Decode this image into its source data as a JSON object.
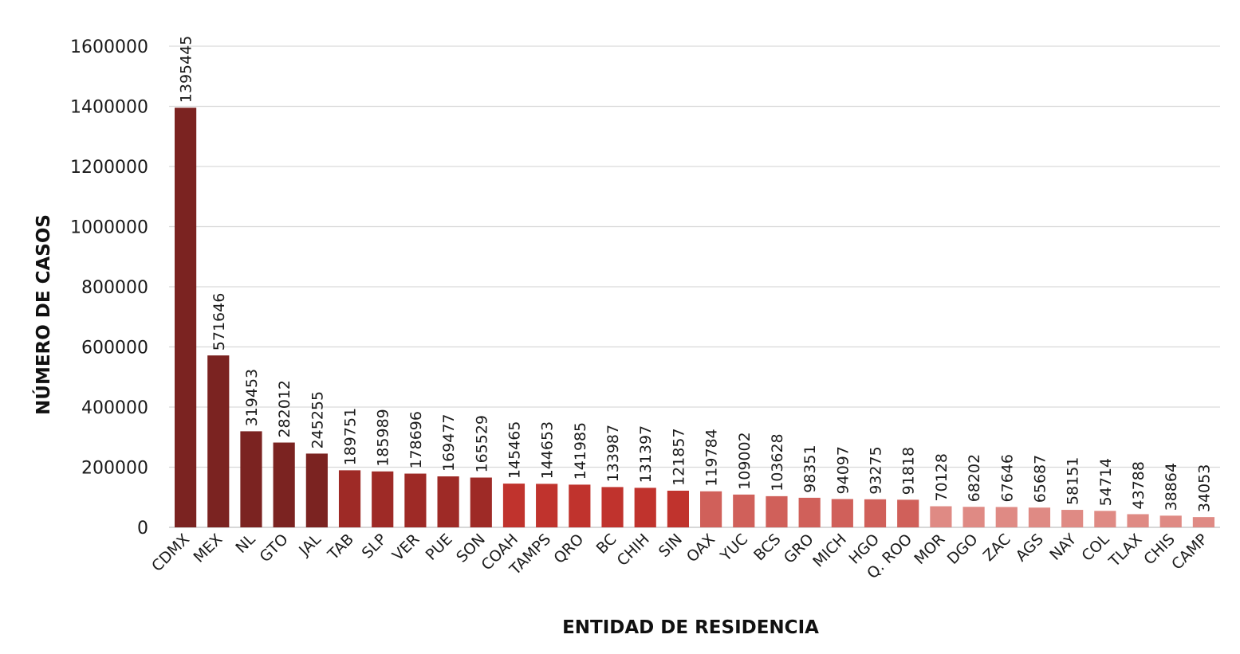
{
  "chart_data": {
    "type": "bar",
    "title": "",
    "xlabel": "ENTIDAD DE RESIDENCIA",
    "ylabel": "NÚMERO DE CASOS",
    "ylim": [
      0,
      1600000
    ],
    "yticks": [
      "0",
      "200000",
      "400000",
      "600000",
      "800000",
      "1000000",
      "1200000",
      "1400000",
      "1600000"
    ],
    "grid": true,
    "legend": "none",
    "categories": [
      "CDMX",
      "MEX",
      "NL",
      "GTO",
      "JAL",
      "TAB",
      "SLP",
      "VER",
      "PUE",
      "SON",
      "COAH",
      "TAMPS",
      "QRO",
      "BC",
      "CHIH",
      "SIN",
      "OAX",
      "YUC",
      "BCS",
      "GRO",
      "MICH",
      "HGO",
      "Q. ROO",
      "MOR",
      "DGO",
      "ZAC",
      "AGS",
      "NAY",
      "COL",
      "TLAX",
      "CHIS",
      "CAMP"
    ],
    "values": [
      1395445,
      571646,
      319453,
      282012,
      245255,
      189751,
      185989,
      178696,
      169477,
      165529,
      145465,
      144653,
      141985,
      133987,
      131397,
      121857,
      119784,
      109002,
      103628,
      98351,
      94097,
      93275,
      91818,
      70128,
      68202,
      67646,
      65687,
      58151,
      54714,
      43788,
      38864,
      34053
    ],
    "colors": {
      "gridline": "#d9d9d9",
      "axis": "#bfbfbf",
      "tier1": "#7b2321",
      "tier2": "#9e2a26",
      "tier3": "#c0332d",
      "tier4": "#d0605a",
      "tier5": "#df8a84"
    }
  }
}
